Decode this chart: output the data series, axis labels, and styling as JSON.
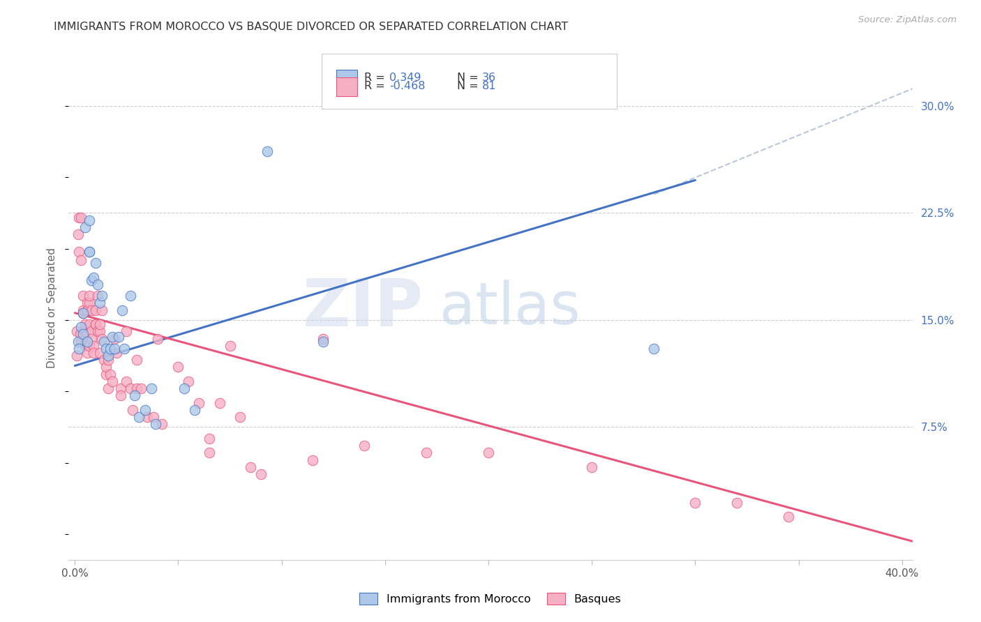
{
  "title": "IMMIGRANTS FROM MOROCCO VS BASQUE DIVORCED OR SEPARATED CORRELATION CHART",
  "source": "Source: ZipAtlas.com",
  "ylabel": "Divorced or Separated",
  "legend_label1": "Immigrants from Morocco",
  "legend_label2": "Basques",
  "R1": 0.349,
  "N1": 36,
  "R2": -0.468,
  "N2": 81,
  "xlim": [
    -0.003,
    0.405
  ],
  "ylim": [
    -0.018,
    0.335
  ],
  "xtick_pos": [
    0.0,
    0.05,
    0.1,
    0.15,
    0.2,
    0.25,
    0.3,
    0.35,
    0.4
  ],
  "xtick_labels_show": [
    "0.0%",
    "",
    "",
    "",
    "",
    "",
    "",
    "",
    "40.0%"
  ],
  "yticks_right": [
    0.075,
    0.15,
    0.225,
    0.3
  ],
  "ytick_labels_right": [
    "7.5%",
    "15.0%",
    "22.5%",
    "30.0%"
  ],
  "color_blue": "#adc8e8",
  "color_pink": "#f5b0c5",
  "line_blue": "#4472c4",
  "line_pink": "#e8547a",
  "line_dash_color": "#b8c8d8",
  "watermark_zip_color": "#c8d4e8",
  "watermark_atlas_color": "#c8d8e8",
  "blue_points": [
    [
      0.0015,
      0.135
    ],
    [
      0.002,
      0.13
    ],
    [
      0.003,
      0.145
    ],
    [
      0.004,
      0.14
    ],
    [
      0.004,
      0.155
    ],
    [
      0.005,
      0.215
    ],
    [
      0.006,
      0.135
    ],
    [
      0.007,
      0.22
    ],
    [
      0.007,
      0.198
    ],
    [
      0.007,
      0.198
    ],
    [
      0.008,
      0.178
    ],
    [
      0.009,
      0.18
    ],
    [
      0.01,
      0.19
    ],
    [
      0.011,
      0.175
    ],
    [
      0.012,
      0.162
    ],
    [
      0.013,
      0.167
    ],
    [
      0.014,
      0.135
    ],
    [
      0.015,
      0.13
    ],
    [
      0.016,
      0.125
    ],
    [
      0.017,
      0.13
    ],
    [
      0.018,
      0.138
    ],
    [
      0.019,
      0.13
    ],
    [
      0.021,
      0.138
    ],
    [
      0.023,
      0.157
    ],
    [
      0.024,
      0.13
    ],
    [
      0.027,
      0.167
    ],
    [
      0.029,
      0.097
    ],
    [
      0.031,
      0.082
    ],
    [
      0.034,
      0.087
    ],
    [
      0.037,
      0.102
    ],
    [
      0.039,
      0.077
    ],
    [
      0.053,
      0.102
    ],
    [
      0.058,
      0.087
    ],
    [
      0.12,
      0.135
    ],
    [
      0.28,
      0.13
    ],
    [
      0.093,
      0.268
    ]
  ],
  "pink_points": [
    [
      0.0008,
      0.125
    ],
    [
      0.001,
      0.142
    ],
    [
      0.0015,
      0.21
    ],
    [
      0.002,
      0.222
    ],
    [
      0.0018,
      0.198
    ],
    [
      0.0025,
      0.14
    ],
    [
      0.003,
      0.192
    ],
    [
      0.003,
      0.222
    ],
    [
      0.003,
      0.135
    ],
    [
      0.004,
      0.155
    ],
    [
      0.004,
      0.167
    ],
    [
      0.004,
      0.155
    ],
    [
      0.004,
      0.157
    ],
    [
      0.005,
      0.147
    ],
    [
      0.005,
      0.137
    ],
    [
      0.005,
      0.142
    ],
    [
      0.005,
      0.132
    ],
    [
      0.006,
      0.157
    ],
    [
      0.006,
      0.162
    ],
    [
      0.006,
      0.157
    ],
    [
      0.006,
      0.127
    ],
    [
      0.007,
      0.162
    ],
    [
      0.007,
      0.147
    ],
    [
      0.007,
      0.167
    ],
    [
      0.007,
      0.132
    ],
    [
      0.008,
      0.142
    ],
    [
      0.008,
      0.137
    ],
    [
      0.008,
      0.157
    ],
    [
      0.009,
      0.132
    ],
    [
      0.009,
      0.127
    ],
    [
      0.01,
      0.147
    ],
    [
      0.01,
      0.157
    ],
    [
      0.01,
      0.147
    ],
    [
      0.011,
      0.167
    ],
    [
      0.011,
      0.142
    ],
    [
      0.012,
      0.142
    ],
    [
      0.012,
      0.127
    ],
    [
      0.012,
      0.147
    ],
    [
      0.013,
      0.157
    ],
    [
      0.013,
      0.137
    ],
    [
      0.014,
      0.122
    ],
    [
      0.015,
      0.112
    ],
    [
      0.015,
      0.117
    ],
    [
      0.016,
      0.122
    ],
    [
      0.016,
      0.102
    ],
    [
      0.017,
      0.112
    ],
    [
      0.018,
      0.107
    ],
    [
      0.019,
      0.137
    ],
    [
      0.02,
      0.127
    ],
    [
      0.022,
      0.102
    ],
    [
      0.022,
      0.097
    ],
    [
      0.025,
      0.142
    ],
    [
      0.025,
      0.107
    ],
    [
      0.027,
      0.102
    ],
    [
      0.028,
      0.087
    ],
    [
      0.03,
      0.122
    ],
    [
      0.03,
      0.102
    ],
    [
      0.032,
      0.102
    ],
    [
      0.035,
      0.082
    ],
    [
      0.038,
      0.082
    ],
    [
      0.04,
      0.137
    ],
    [
      0.042,
      0.077
    ],
    [
      0.05,
      0.117
    ],
    [
      0.055,
      0.107
    ],
    [
      0.06,
      0.092
    ],
    [
      0.065,
      0.067
    ],
    [
      0.065,
      0.057
    ],
    [
      0.07,
      0.092
    ],
    [
      0.075,
      0.132
    ],
    [
      0.08,
      0.082
    ],
    [
      0.085,
      0.047
    ],
    [
      0.09,
      0.042
    ],
    [
      0.115,
      0.052
    ],
    [
      0.12,
      0.137
    ],
    [
      0.14,
      0.062
    ],
    [
      0.17,
      0.057
    ],
    [
      0.2,
      0.057
    ],
    [
      0.25,
      0.047
    ],
    [
      0.3,
      0.022
    ],
    [
      0.32,
      0.022
    ],
    [
      0.345,
      0.012
    ]
  ],
  "blue_line_x": [
    0.0,
    0.3
  ],
  "blue_line_y": [
    0.118,
    0.248
  ],
  "dash_line_x": [
    0.28,
    0.405
  ],
  "dash_line_y": [
    0.238,
    0.312
  ],
  "pink_line_x": [
    0.0,
    0.405
  ],
  "pink_line_y": [
    0.155,
    -0.005
  ]
}
